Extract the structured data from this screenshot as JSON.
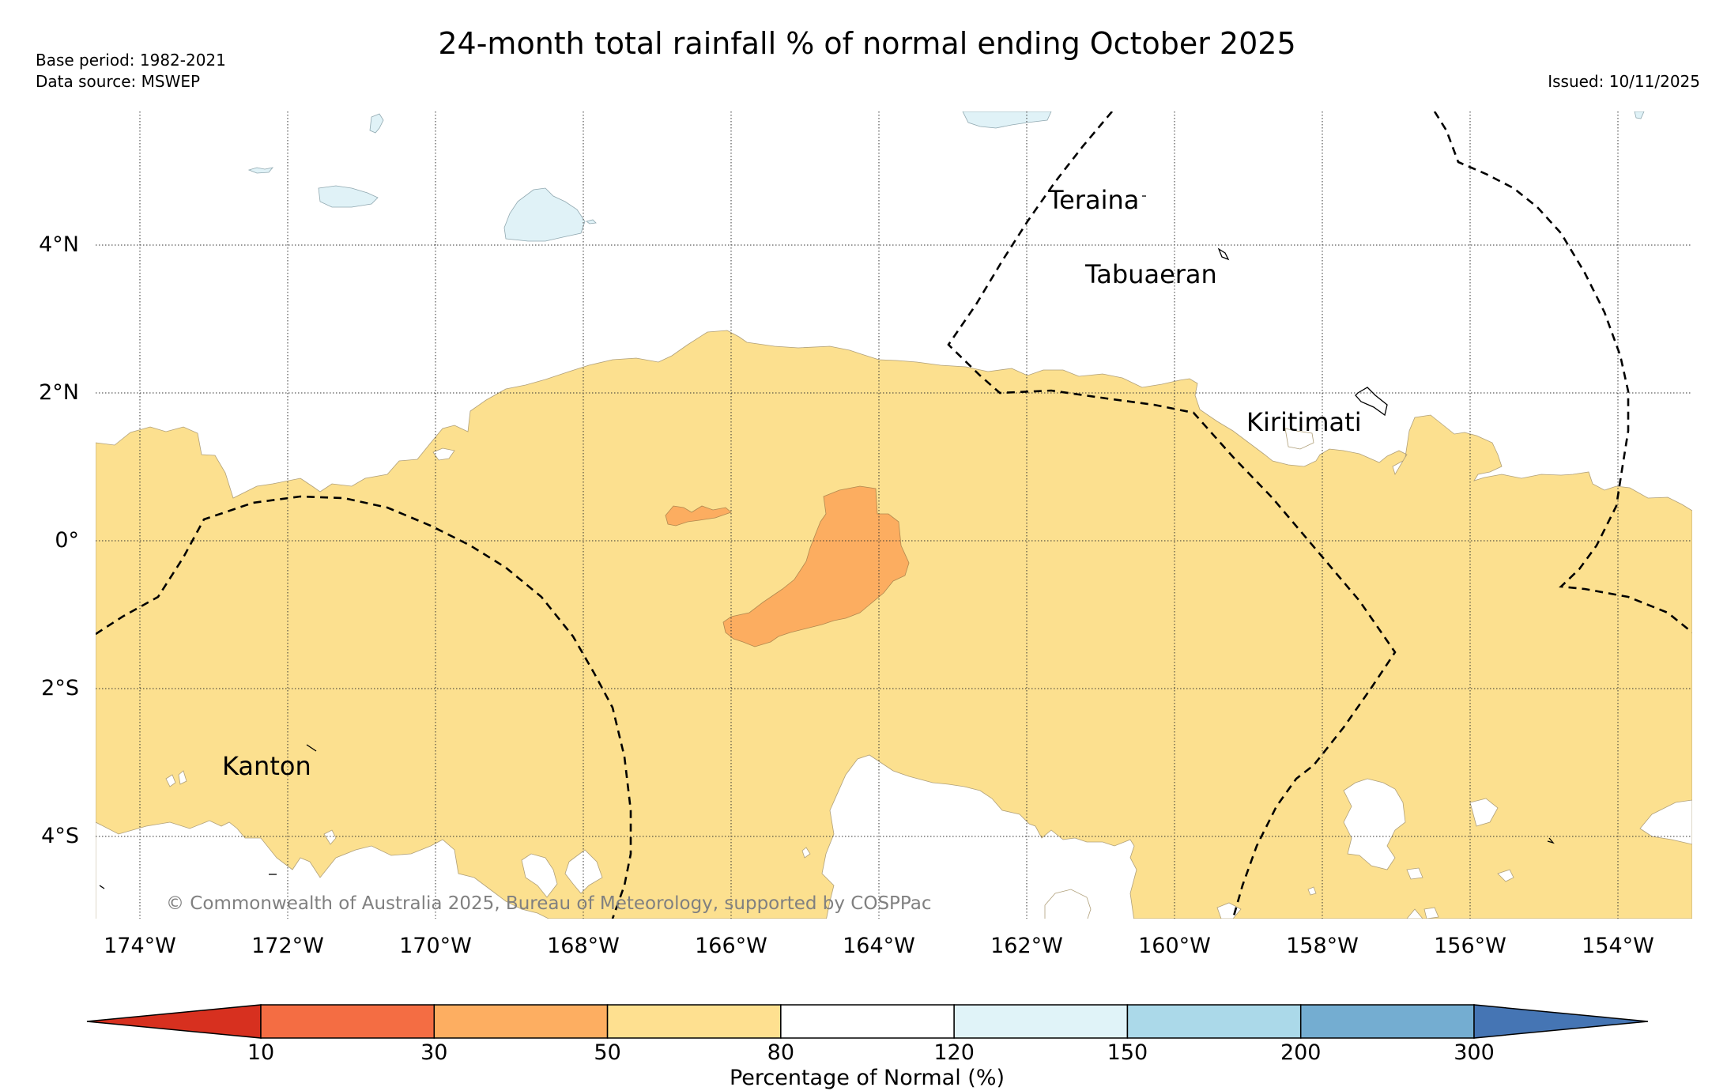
{
  "title": "24-month total rainfall % of normal ending October 2025",
  "base_period": "Base period: 1982-2021",
  "data_source": "Data source: MSWEP",
  "issued": "Issued: 10/11/2025",
  "copyright": "© Commonwealth of Australia 2025, Bureau of Meteorology, supported by COSPPac",
  "map": {
    "lon_range": [
      -174.6,
      -153.0
    ],
    "lat_range": [
      -5.1,
      5.8
    ],
    "lon_ticks": [
      "174°W",
      "172°W",
      "170°W",
      "168°W",
      "166°W",
      "164°W",
      "162°W",
      "160°W",
      "158°W",
      "156°W",
      "154°W"
    ],
    "lat_ticks": [
      "4°N",
      "2°N",
      "0°",
      "2°S",
      "4°S"
    ],
    "gridlines": true,
    "places": [
      "Teraina",
      "Tabuaeran",
      "Kiritimati",
      "Kanton"
    ]
  },
  "colorbar": {
    "label": "Percentage of Normal (%)",
    "ticks": [
      "10",
      "30",
      "50",
      "80",
      "120",
      "150",
      "200",
      "300"
    ],
    "colors": [
      "#d7301f",
      "#f46d43",
      "#fdae61",
      "#fee090",
      "#ffffff",
      "#e0f3f8",
      "#abd9e9",
      "#74add1",
      "#4575b4"
    ]
  }
}
